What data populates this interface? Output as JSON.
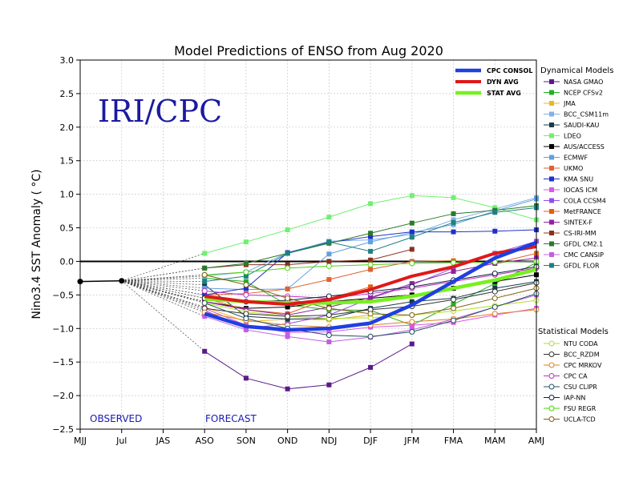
{
  "chart_data": {
    "type": "line",
    "title": "Model Predictions of ENSO from Aug 2020",
    "ylabel": "Nino3.4 SST Anomaly ( °C)",
    "xlabel": "",
    "watermark": "IRI/CPC",
    "observed_label": "OBSERVED",
    "forecast_label": "FORECAST",
    "categories": [
      "MJJ",
      "Jul",
      "JAS",
      "ASO",
      "SON",
      "OND",
      "NDJ",
      "DJF",
      "JFM",
      "FMA",
      "MAM",
      "AMJ"
    ],
    "ylim": [
      -2.5,
      3.0
    ],
    "yticks": [
      "−2.5",
      "−2.0",
      "−1.5",
      "−1.0",
      "−0.5",
      "0.0",
      "0.5",
      "1.0",
      "1.5",
      "2.0",
      "2.5",
      "3.0"
    ],
    "grid": true,
    "observed": [
      -0.3,
      -0.29
    ],
    "averages": [
      {
        "name": "CPC CONSOL",
        "color": "#1f3fe0",
        "width": 4.5,
        "values": [
          null,
          null,
          null,
          -0.78,
          -0.97,
          -1.02,
          -1.0,
          -0.92,
          -0.65,
          -0.3,
          0.05,
          0.28
        ]
      },
      {
        "name": "DYN AVG",
        "color": "#e01818",
        "width": 4,
        "values": [
          null,
          null,
          null,
          -0.52,
          -0.6,
          -0.64,
          -0.57,
          -0.42,
          -0.22,
          -0.08,
          0.12,
          0.22
        ]
      },
      {
        "name": "STAT AVG",
        "color": "#78f020",
        "width": 4.5,
        "values": [
          null,
          null,
          null,
          -0.56,
          -0.6,
          -0.62,
          -0.62,
          -0.6,
          -0.52,
          -0.4,
          -0.28,
          -0.12
        ]
      }
    ],
    "dynamical_models": [
      {
        "name": "NASA GMAO",
        "color": "#5a1a8a",
        "values": [
          null,
          null,
          null,
          -1.34,
          -1.74,
          -1.9,
          -1.84,
          -1.58,
          -1.23,
          null,
          null,
          null
        ]
      },
      {
        "name": "NCEP CFSv2",
        "color": "#22b022",
        "values": [
          null,
          null,
          null,
          -0.25,
          -0.3,
          -0.65,
          -0.72,
          -0.73,
          -0.95,
          -0.64,
          -0.33,
          -0.02
        ]
      },
      {
        "name": "JMA",
        "color": "#e8b820",
        "values": [
          null,
          null,
          null,
          -0.68,
          -0.9,
          -0.86,
          -0.87,
          -0.8,
          null,
          null,
          null,
          null
        ]
      },
      {
        "name": "BCC_CSM11m",
        "color": "#80b0e8",
        "values": [
          null,
          null,
          null,
          -0.22,
          -0.16,
          0.13,
          0.3,
          0.32,
          0.4,
          0.62,
          0.78,
          0.95
        ]
      },
      {
        "name": "SAUDI-KAU",
        "color": "#1a3a4a",
        "values": [
          null,
          null,
          null,
          -0.35,
          -0.82,
          -0.86,
          -0.85,
          -0.7,
          -0.6,
          -0.55,
          -0.4,
          -0.3
        ]
      },
      {
        "name": "LDEO",
        "color": "#70f070",
        "values": [
          null,
          null,
          null,
          0.12,
          0.29,
          0.47,
          0.66,
          0.86,
          0.98,
          0.95,
          0.8,
          0.62
        ]
      },
      {
        "name": "AUS/ACCESS",
        "color": "#000000",
        "values": [
          null,
          null,
          null,
          -0.6,
          -0.7,
          -0.68,
          -0.6,
          -0.55,
          -0.5,
          -0.4,
          -0.3,
          -0.2
        ]
      },
      {
        "name": "ECMWF",
        "color": "#60a0e0",
        "values": [
          null,
          null,
          null,
          -0.4,
          -0.42,
          -0.41,
          0.11,
          0.29,
          0.43,
          0.55,
          0.75,
          0.93
        ]
      },
      {
        "name": "UKMO",
        "color": "#e06030",
        "values": [
          null,
          null,
          null,
          -0.5,
          -0.48,
          -0.41,
          -0.27,
          -0.12,
          0.0,
          0.01,
          -0.03,
          0.12
        ]
      },
      {
        "name": "KMA SNU",
        "color": "#2030c8",
        "values": [
          null,
          null,
          null,
          -0.5,
          -0.4,
          0.13,
          0.28,
          0.37,
          0.44,
          0.44,
          0.45,
          0.47
        ]
      },
      {
        "name": "IOCAS ICM",
        "color": "#d858e8",
        "values": [
          null,
          null,
          null,
          -0.7,
          -0.95,
          -1.06,
          -1.05,
          -0.98,
          -0.95,
          -0.91,
          -0.8,
          -0.7
        ]
      },
      {
        "name": "COLA CCSM4",
        "color": "#9050e8",
        "values": [
          null,
          null,
          null,
          -0.73,
          -1.0,
          -0.93,
          -0.8,
          -0.55,
          -0.35,
          -0.1,
          0.12,
          0.3
        ]
      },
      {
        "name": "MetFRANCE",
        "color": "#e85a10",
        "values": [
          null,
          null,
          null,
          -0.55,
          -0.72,
          -0.78,
          -0.55,
          -0.38,
          null,
          null,
          null,
          null
        ]
      },
      {
        "name": "SINTEX-F",
        "color": "#9020a0",
        "values": [
          null,
          null,
          null,
          -0.6,
          -0.72,
          -0.8,
          -0.68,
          -0.54,
          -0.33,
          -0.15,
          -0.03,
          0.05
        ]
      },
      {
        "name": "CS-IRI-MM",
        "color": "#8a3020",
        "values": [
          null,
          null,
          null,
          -0.1,
          -0.05,
          -0.05,
          0.0,
          0.02,
          0.18,
          null,
          null,
          null
        ]
      },
      {
        "name": "GFDL CM2.1",
        "color": "#2a7a2a",
        "values": [
          null,
          null,
          null,
          -0.1,
          -0.03,
          0.12,
          0.27,
          0.42,
          0.57,
          0.71,
          0.76,
          0.83
        ]
      },
      {
        "name": "CMC CANSIP",
        "color": "#c060e0",
        "values": [
          null,
          null,
          null,
          -0.82,
          -1.02,
          -1.12,
          -1.2,
          -1.13,
          -1.02,
          -0.86,
          -0.68,
          -0.5
        ]
      },
      {
        "name": "GFDL FLOR",
        "color": "#208080",
        "values": [
          null,
          null,
          null,
          -0.3,
          -0.22,
          0.12,
          0.29,
          0.15,
          0.36,
          0.58,
          0.73,
          0.8
        ]
      }
    ],
    "statistical_models": [
      {
        "name": "NTU CODA",
        "color": "#b0e020",
        "values": [
          null,
          null,
          null,
          -0.62,
          -0.75,
          -0.82,
          -0.85,
          -0.84,
          -0.8,
          -0.74,
          -0.66,
          -0.58
        ]
      },
      {
        "name": "BCC_RZDM",
        "color": "#333333",
        "values": [
          null,
          null,
          null,
          -0.7,
          -0.78,
          -0.82,
          -0.8,
          -0.72,
          -0.67,
          -0.57,
          -0.45,
          -0.32
        ]
      },
      {
        "name": "CPC MRKOV",
        "color": "#e08020",
        "values": [
          null,
          null,
          null,
          -0.76,
          -0.88,
          -0.95,
          -0.98,
          -0.95,
          -0.9,
          -0.86,
          -0.78,
          -0.72
        ]
      },
      {
        "name": "CPC CA",
        "color": "#c030c0",
        "values": [
          null,
          null,
          null,
          -0.44,
          -0.5,
          -0.52,
          -0.55,
          -0.48,
          -0.4,
          -0.3,
          -0.2,
          -0.1
        ]
      },
      {
        "name": "CSU CLIPR",
        "color": "#205060",
        "values": [
          null,
          null,
          null,
          -0.62,
          -0.85,
          -1.0,
          -1.1,
          -1.12,
          -1.05,
          -0.88,
          -0.68,
          -0.48
        ]
      },
      {
        "name": "IAP-NN",
        "color": "#102040",
        "values": [
          null,
          null,
          null,
          -0.55,
          -0.6,
          -0.58,
          -0.52,
          -0.45,
          -0.38,
          -0.28,
          -0.18,
          -0.08
        ]
      },
      {
        "name": "FSU REGR",
        "color": "#50d010",
        "values": [
          null,
          null,
          null,
          -0.2,
          -0.16,
          -0.1,
          -0.07,
          -0.05,
          -0.03,
          -0.02,
          -0.01,
          0.0
        ]
      },
      {
        "name": "UCLA-TCD",
        "color": "#806010",
        "values": [
          null,
          null,
          null,
          -0.2,
          -0.35,
          -0.55,
          -0.7,
          -0.78,
          -0.8,
          -0.7,
          -0.55,
          -0.4
        ]
      }
    ],
    "legend_titles": {
      "dynamical": "Dynamical Models",
      "statistical": "Statistical Models"
    }
  }
}
